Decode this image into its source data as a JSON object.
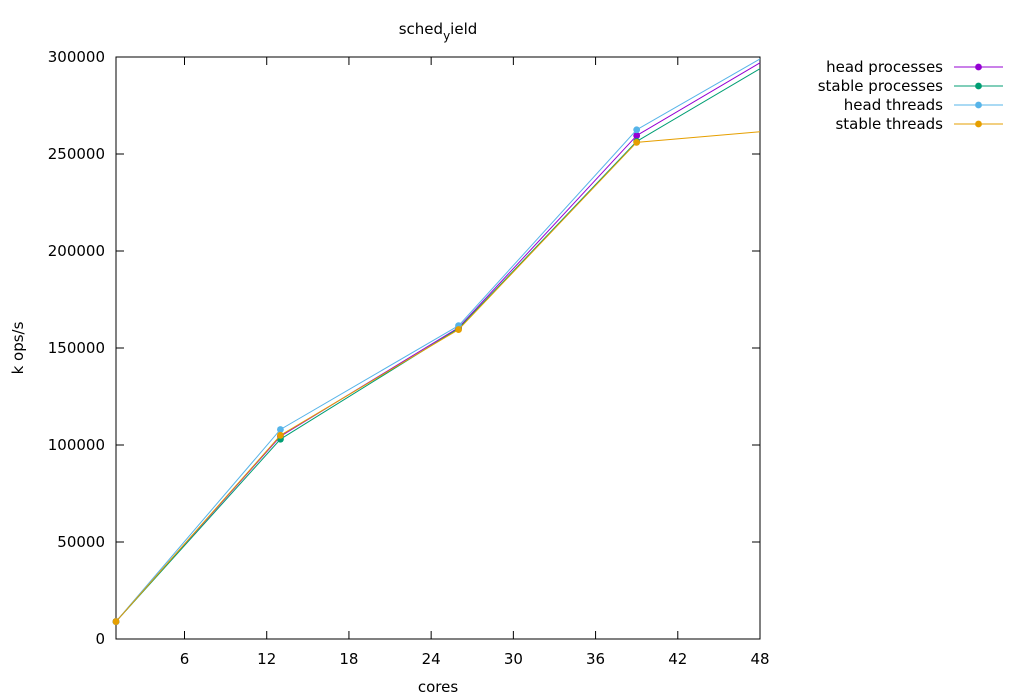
{
  "chart_data": {
    "type": "line",
    "title": "sched_yield",
    "title_main": "sched",
    "title_sub": "y",
    "title_rest": "ield",
    "xlabel": "cores",
    "ylabel": "k ops/s",
    "xlim": [
      1,
      48
    ],
    "ylim": [
      0,
      300000
    ],
    "xticks": [
      6,
      12,
      18,
      24,
      30,
      36,
      42,
      48
    ],
    "yticks": [
      0,
      50000,
      100000,
      150000,
      200000,
      250000,
      300000
    ],
    "grid": false,
    "legend_position": "outside-top-right",
    "x": [
      1,
      13,
      26,
      39,
      48
    ],
    "series": [
      {
        "name": "head processes",
        "color": "#9400d3",
        "values": [
          9000,
          104500,
          160500,
          259500,
          297000
        ]
      },
      {
        "name": "stable processes",
        "color": "#009e73",
        "values": [
          9000,
          103000,
          160000,
          256500,
          294000
        ]
      },
      {
        "name": "head threads",
        "color": "#56b4e9",
        "values": [
          9000,
          108000,
          161500,
          262500,
          299000
        ]
      },
      {
        "name": "stable threads",
        "color": "#e69f00",
        "values": [
          9000,
          105000,
          159500,
          256000,
          261500
        ]
      }
    ]
  }
}
